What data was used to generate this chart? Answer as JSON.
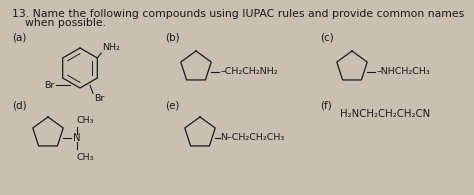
{
  "title_num": "13.",
  "title_text": "Name the following compounds using IUPAC rules and provide common names",
  "title_text2": "when possible.",
  "bg_color": "#c8c0b0",
  "text_color": "#1a1a1a",
  "label_a": "(a)",
  "label_b": "(b)",
  "label_c": "(c)",
  "label_d": "(d)",
  "label_e": "(e)",
  "label_f": "(f)",
  "compound_b_text": "–CH₂CH₂NH₂",
  "compound_c_text": "–NHCH₂CH₃",
  "compound_d_ch3_top": "CH₃",
  "compound_d_n": "N",
  "compound_d_ch3_bot": "CH₃",
  "compound_e_text": "N–CH₂CH₂CH₃",
  "compound_f_text": "H₂NCH₂CH₂CH₂CN",
  "compound_a_nh2": "NH₂",
  "compound_a_br_left": "Br",
  "compound_a_br_right": "Br",
  "title_fontsize": 7.8,
  "label_fontsize": 7.5,
  "chem_fontsize": 6.8
}
